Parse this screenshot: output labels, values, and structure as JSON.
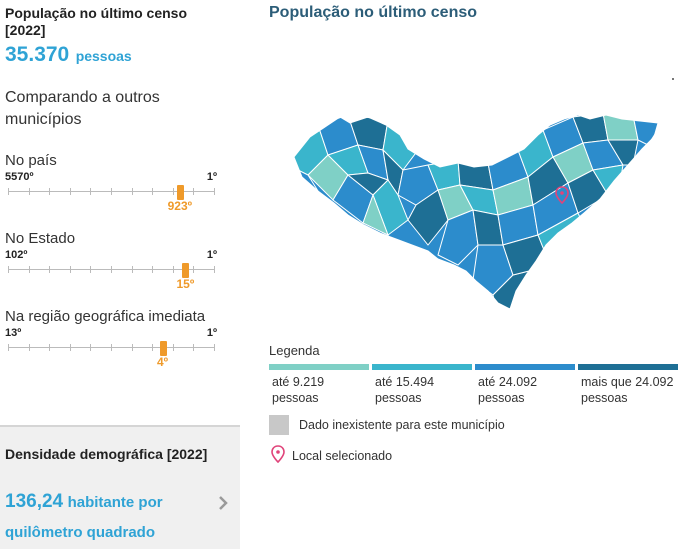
{
  "population": {
    "title": "População no último censo [2022]",
    "value": "35.370",
    "unit": "pessoas"
  },
  "compare_heading": "Comparando a outros municípios",
  "rankings": [
    {
      "label": "No país",
      "lowest": "5570º",
      "highest": "1º",
      "position": "923º",
      "fraction": 0.834
    },
    {
      "label": "No Estado",
      "lowest": "102º",
      "highest": "1º",
      "position": "15º",
      "fraction": 0.861
    },
    {
      "label": "Na região geográfica imediata",
      "lowest": "13º",
      "highest": "1º",
      "position": "4º",
      "fraction": 0.75
    }
  ],
  "density": {
    "title": "Densidade demográfica [2022]",
    "value": "136,24",
    "unit": "habitante por quilômetro quadrado"
  },
  "map": {
    "title": "População no último censo",
    "legend_title": "Legenda",
    "legend": [
      {
        "line1": "até 9.219",
        "line2": "pessoas",
        "color": "#7fd0c6"
      },
      {
        "line1": "até 15.494",
        "line2": "pessoas",
        "color": "#3ab5cc"
      },
      {
        "line1": "até 24.092",
        "line2": "pessoas",
        "color": "#2c8ccc"
      },
      {
        "line1": "mais que 24.092",
        "line2": "pessoas",
        "color": "#1e6f95"
      }
    ],
    "nodata_label": "Dado inexistente para este município",
    "selected_label": "Local selecionado",
    "accent_color": "#e0447a"
  }
}
